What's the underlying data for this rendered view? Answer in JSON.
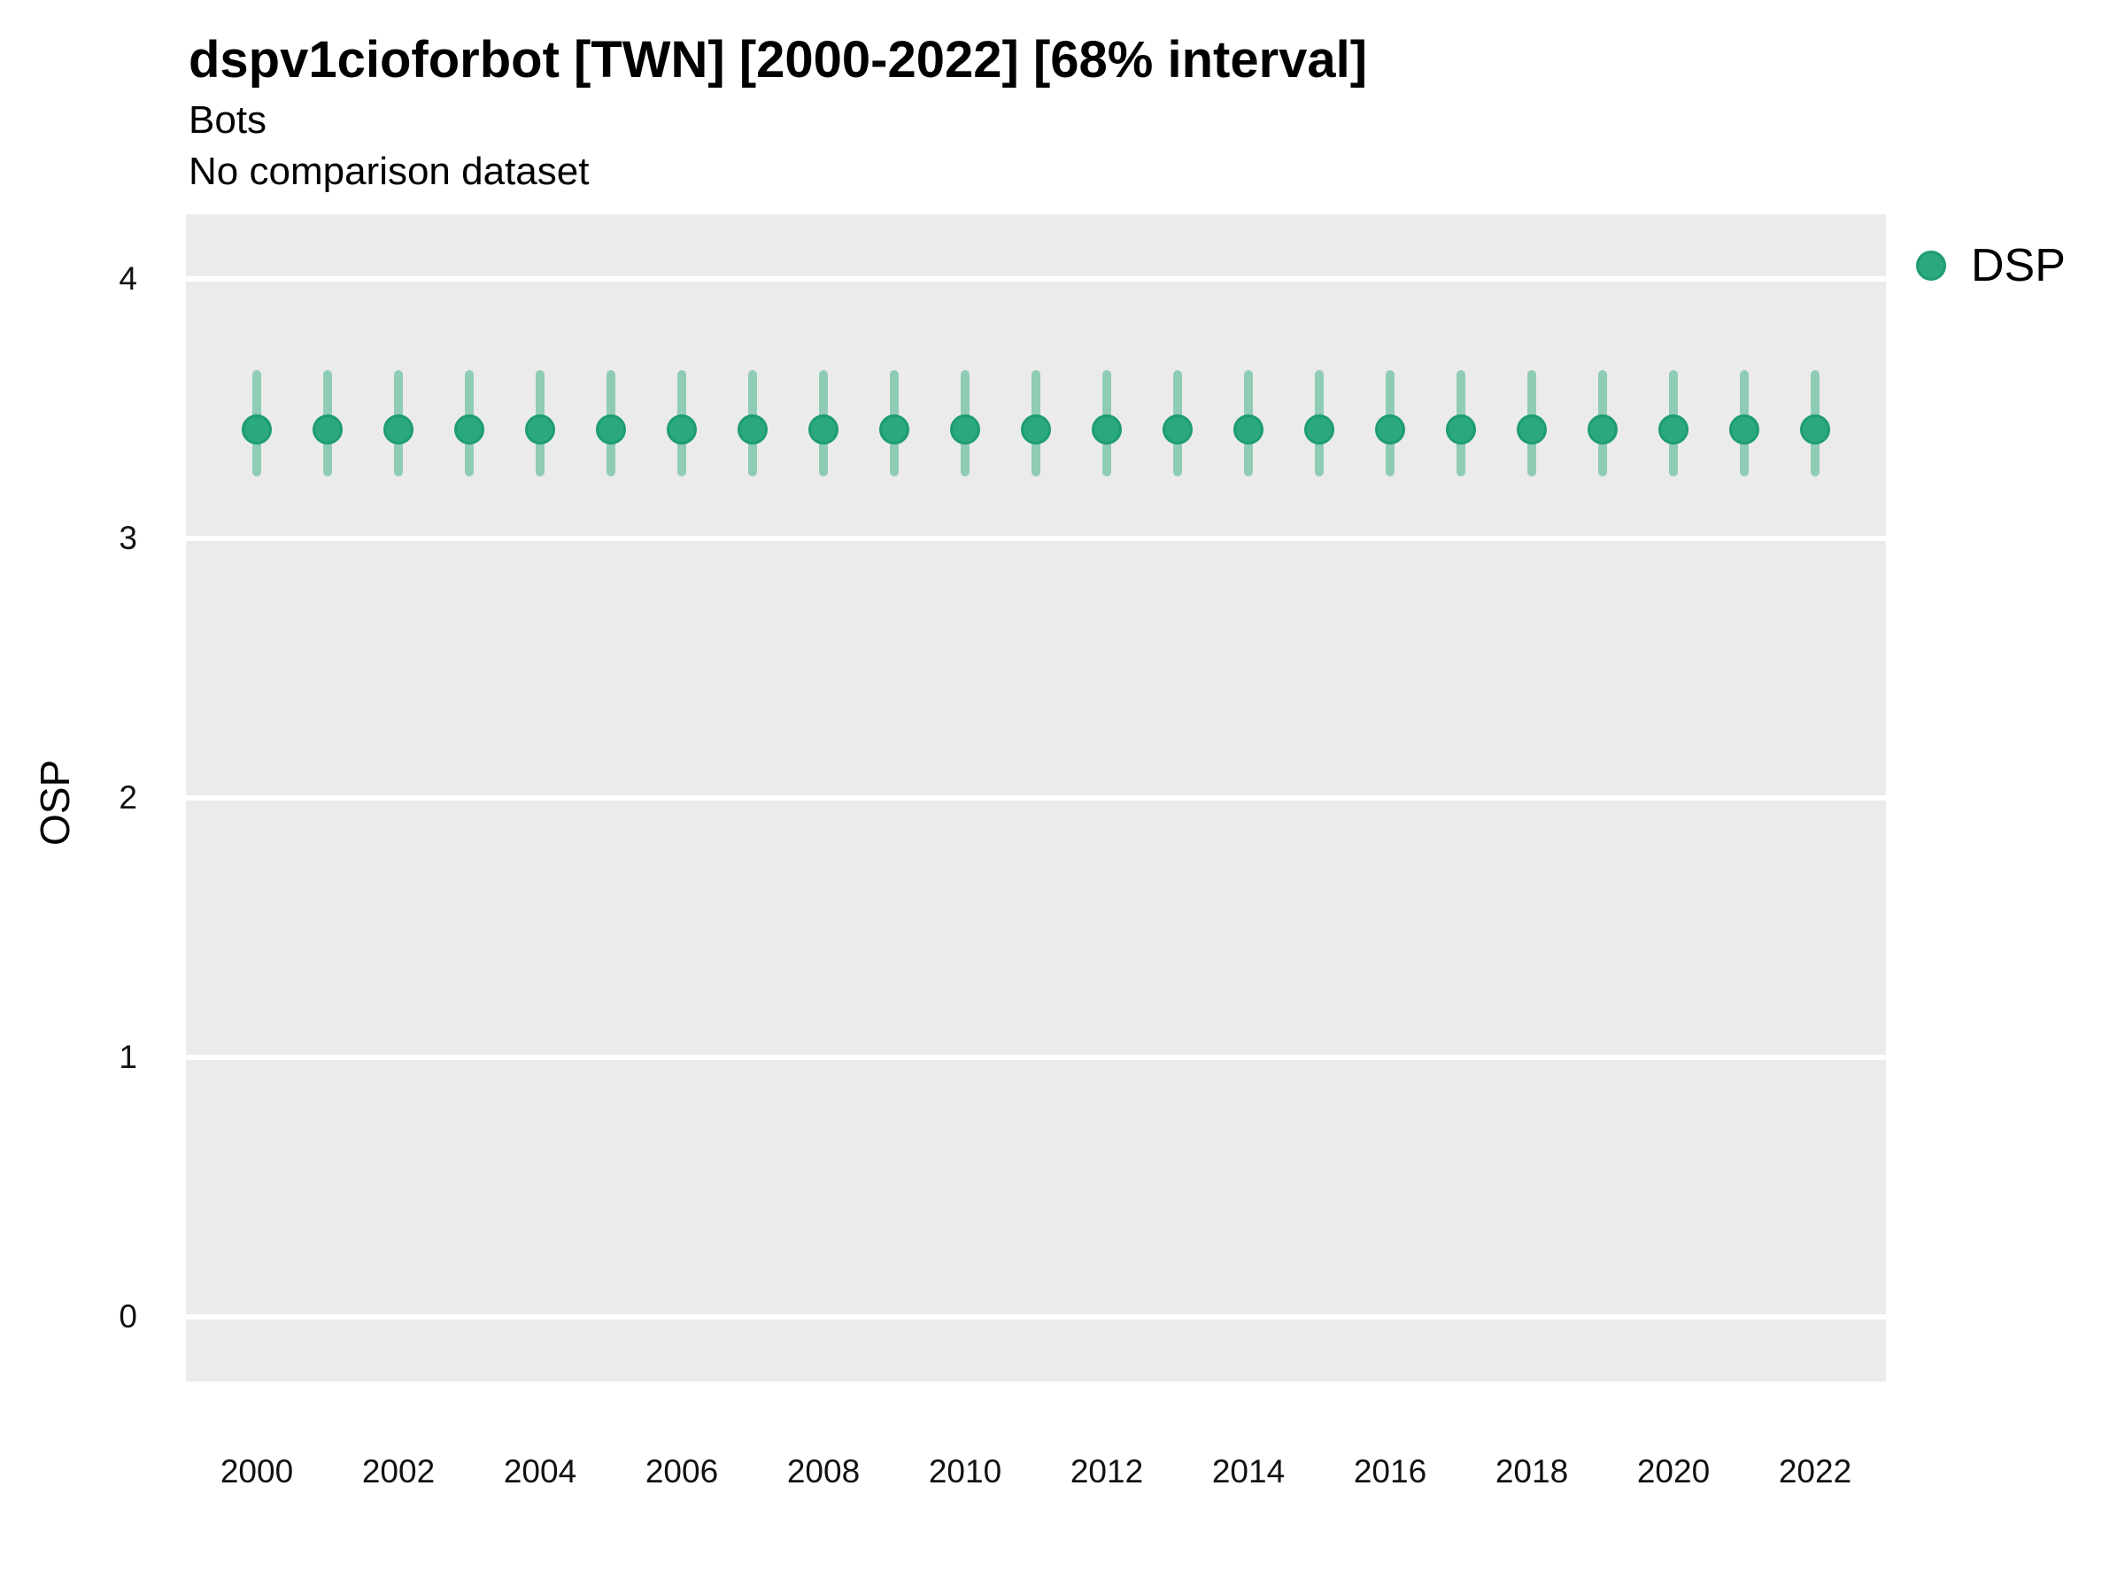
{
  "header": {
    "title": "dspv1cioforbot [TWN] [2000-2022] [68% interval]",
    "subtitle": "Bots",
    "note": "No comparison dataset"
  },
  "legend": {
    "position": "right",
    "items": [
      {
        "label": "DSP",
        "color": "#2BA87E",
        "border_color": "#1E9C73",
        "marker": "circle"
      }
    ]
  },
  "chart_data": {
    "type": "scatter",
    "subtype": "pointrange",
    "title": "dspv1cioforbot [TWN] [2000-2022] [68% interval]",
    "subtitle": "Bots",
    "note": "No comparison dataset",
    "xlabel": "",
    "ylabel": "OSP",
    "interval_label": "68% interval",
    "xlim": [
      1999,
      2023
    ],
    "ylim": [
      -0.25,
      4.25
    ],
    "xticks": [
      2000,
      2002,
      2004,
      2006,
      2008,
      2010,
      2012,
      2014,
      2016,
      2018,
      2020,
      2022
    ],
    "yticks": [
      0,
      1,
      2,
      3,
      4
    ],
    "grid": "horizontal-major-only",
    "legend_position": "right",
    "style": {
      "panel_bg": "#EBEBEB",
      "grid_color": "#FFFFFF",
      "point_fill": "#2BA87E",
      "point_border": "#1E9C73",
      "errorbar_color": "#8FCCB4",
      "text_color": "#111111"
    },
    "series": [
      {
        "name": "DSP",
        "x": [
          2000,
          2001,
          2002,
          2003,
          2004,
          2005,
          2006,
          2007,
          2008,
          2009,
          2010,
          2011,
          2012,
          2013,
          2014,
          2015,
          2016,
          2017,
          2018,
          2019,
          2020,
          2021,
          2022
        ],
        "y": [
          3.42,
          3.42,
          3.42,
          3.42,
          3.42,
          3.42,
          3.42,
          3.42,
          3.42,
          3.42,
          3.42,
          3.42,
          3.42,
          3.42,
          3.42,
          3.42,
          3.42,
          3.42,
          3.42,
          3.42,
          3.42,
          3.42,
          3.42
        ],
        "y_lo": [
          3.24,
          3.24,
          3.24,
          3.24,
          3.24,
          3.24,
          3.24,
          3.24,
          3.24,
          3.24,
          3.24,
          3.24,
          3.24,
          3.24,
          3.24,
          3.24,
          3.24,
          3.24,
          3.24,
          3.24,
          3.24,
          3.24,
          3.24
        ],
        "y_hi": [
          3.65,
          3.65,
          3.65,
          3.65,
          3.65,
          3.65,
          3.65,
          3.65,
          3.65,
          3.65,
          3.65,
          3.65,
          3.65,
          3.65,
          3.65,
          3.65,
          3.65,
          3.65,
          3.65,
          3.65,
          3.65,
          3.65,
          3.65
        ]
      }
    ]
  }
}
